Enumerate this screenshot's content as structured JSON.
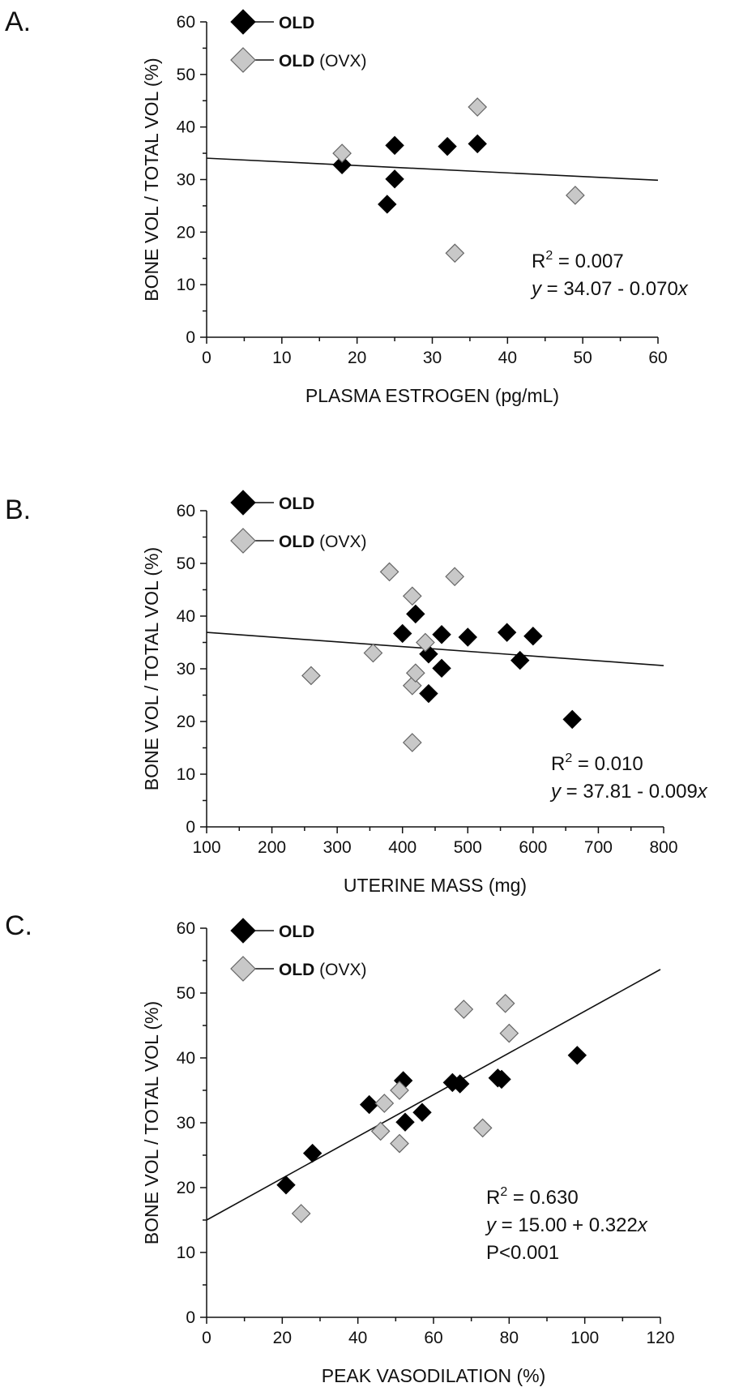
{
  "chart_data": [
    {
      "type": "scatter",
      "panel_label": "A.",
      "xlabel": "PLASMA ESTROGEN (pg/mL)",
      "ylabel": "BONE VOL / TOTAL VOL (%)",
      "xlim": [
        0,
        60
      ],
      "ylim": [
        0,
        60
      ],
      "xticks": [
        0,
        10,
        20,
        30,
        40,
        50,
        60
      ],
      "yticks": [
        0,
        10,
        20,
        30,
        40,
        50,
        60
      ],
      "series": [
        {
          "name": "OLD",
          "x": [
            18,
            24,
            25,
            25,
            32,
            36
          ],
          "y": [
            32.8,
            25.3,
            30.1,
            36.5,
            36.3,
            36.8
          ]
        },
        {
          "name": "OLD (OVX)",
          "x": [
            18,
            33,
            36,
            49
          ],
          "y": [
            35.0,
            16.0,
            43.8,
            27.0
          ]
        }
      ],
      "fit": {
        "intercept": 34.07,
        "slope": -0.07
      },
      "stats": {
        "r2": "R² = 0.007",
        "equation": "y = 34.07 - 0.070x"
      }
    },
    {
      "type": "scatter",
      "panel_label": "B.",
      "xlabel": "UTERINE MASS (mg)",
      "ylabel": "BONE VOL / TOTAL VOL (%)",
      "xlim": [
        100,
        800
      ],
      "ylim": [
        0,
        60
      ],
      "xticks": [
        100,
        200,
        300,
        400,
        500,
        600,
        700,
        800
      ],
      "yticks": [
        0,
        10,
        20,
        30,
        40,
        50,
        60
      ],
      "series": [
        {
          "name": "OLD",
          "x": [
            400,
            420,
            440,
            440,
            460,
            460,
            500,
            560,
            580,
            600,
            660
          ],
          "y": [
            36.7,
            40.4,
            32.8,
            25.3,
            36.5,
            30.1,
            36.0,
            36.9,
            31.6,
            36.2,
            20.4
          ]
        },
        {
          "name": "OLD (OVX)",
          "x": [
            260,
            355,
            380,
            415,
            415,
            415,
            420,
            435,
            480
          ],
          "y": [
            28.7,
            33.0,
            48.4,
            43.8,
            26.8,
            16.0,
            29.2,
            35.0,
            47.5
          ]
        }
      ],
      "fit": {
        "intercept": 37.81,
        "slope": -0.009
      },
      "stats": {
        "r2": "R² = 0.010",
        "equation": "y = 37.81 - 0.009x"
      }
    },
    {
      "type": "scatter",
      "panel_label": "C.",
      "xlabel": "PEAK VASODILATION (%)",
      "ylabel": "BONE VOL / TOTAL VOL (%)",
      "xlim": [
        0,
        120
      ],
      "ylim": [
        0,
        60
      ],
      "xticks": [
        0,
        20,
        40,
        60,
        80,
        100,
        120
      ],
      "yticks": [
        0,
        10,
        20,
        30,
        40,
        50,
        60
      ],
      "series": [
        {
          "name": "OLD",
          "x": [
            21,
            28,
            43,
            52,
            52.5,
            57,
            65,
            67,
            77,
            78,
            98
          ],
          "y": [
            20.4,
            25.3,
            32.8,
            36.5,
            30.1,
            31.6,
            36.2,
            36.0,
            36.9,
            36.7,
            40.4
          ]
        },
        {
          "name": "OLD (OVX)",
          "x": [
            25,
            46,
            47,
            51,
            51,
            68,
            73,
            79,
            80
          ],
          "y": [
            16.0,
            28.7,
            33.0,
            26.8,
            35.0,
            47.5,
            29.2,
            48.4,
            43.8
          ]
        }
      ],
      "fit": {
        "intercept": 15.0,
        "slope": 0.322
      },
      "stats": {
        "r2": "R² = 0.630",
        "equation": "y = 15.00 + 0.322x",
        "p": "P<0.001"
      }
    }
  ],
  "legend": {
    "old_bold": "OLD",
    "ovx_bold": "OLD",
    "ovx_suffix": "(OVX)"
  },
  "colors": {
    "old": "#000000",
    "ovx": "#c8c8c8"
  }
}
